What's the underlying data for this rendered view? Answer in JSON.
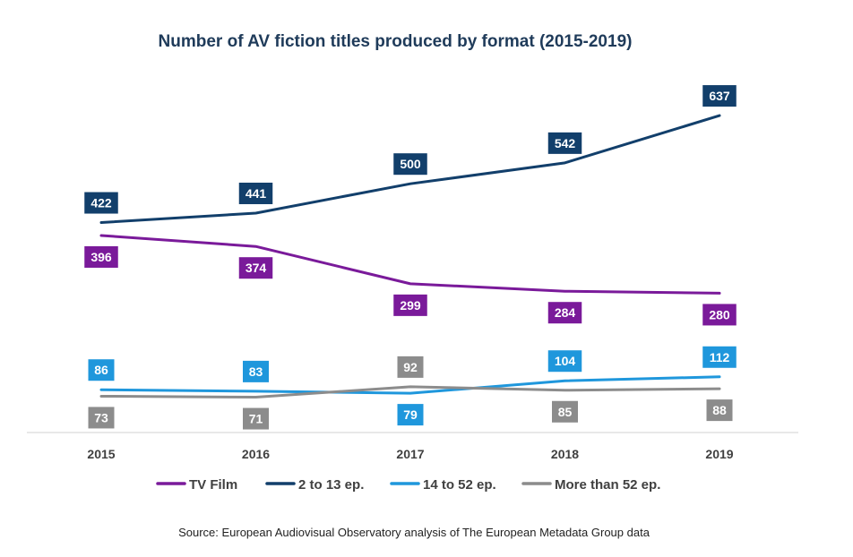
{
  "chart_data": {
    "type": "line",
    "title": "Number of AV fiction titles produced by format (2015-2019)",
    "x": [
      "2015",
      "2016",
      "2017",
      "2018",
      "2019"
    ],
    "xlabel": "",
    "ylabel": "",
    "ylim": [
      0,
      700
    ],
    "grid": false,
    "legend_position": "bottom",
    "series": [
      {
        "name": "TV Film",
        "color": "#7a1a9a",
        "values": [
          396,
          374,
          299,
          284,
          280
        ],
        "label_position": "below"
      },
      {
        "name": "2 to 13 ep.",
        "color": "#123f6b",
        "values": [
          422,
          441,
          500,
          542,
          637
        ],
        "label_position": "above"
      },
      {
        "name": "14 to 52 ep.",
        "color": "#1f97dc",
        "values": [
          86,
          83,
          79,
          104,
          112
        ],
        "label_position": [
          "above",
          "above",
          "below",
          "above",
          "above"
        ]
      },
      {
        "name": "More than 52 ep.",
        "color": "#8c8c8c",
        "values": [
          73,
          71,
          92,
          85,
          88
        ],
        "label_position": [
          "below",
          "below",
          "above",
          "below",
          "below"
        ]
      }
    ],
    "source": "Source: European Audiovisual Observatory analysis of The European Metadata Group data"
  }
}
